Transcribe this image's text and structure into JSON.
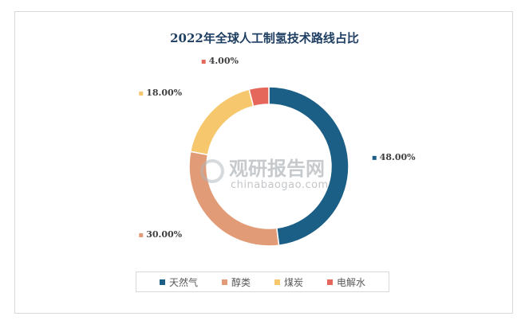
{
  "chart_data": {
    "type": "pie",
    "title": "2022年全球人工制氢技术路线占比",
    "donut": true,
    "categories": [
      "天然气",
      "醇类",
      "煤炭",
      "电解水"
    ],
    "values": [
      48.0,
      30.0,
      18.0,
      4.0
    ],
    "value_labels": [
      "48.00%",
      "30.00%",
      "18.00%",
      "4.00%"
    ],
    "colors": [
      "#1c5f86",
      "#e29b77",
      "#f6c76d",
      "#e5665a"
    ],
    "legend": "bottom",
    "start_angle_deg": 0,
    "direction": "clockwise"
  },
  "watermark": {
    "main": "观研报告网",
    "sub": "chinabaogao.com"
  }
}
